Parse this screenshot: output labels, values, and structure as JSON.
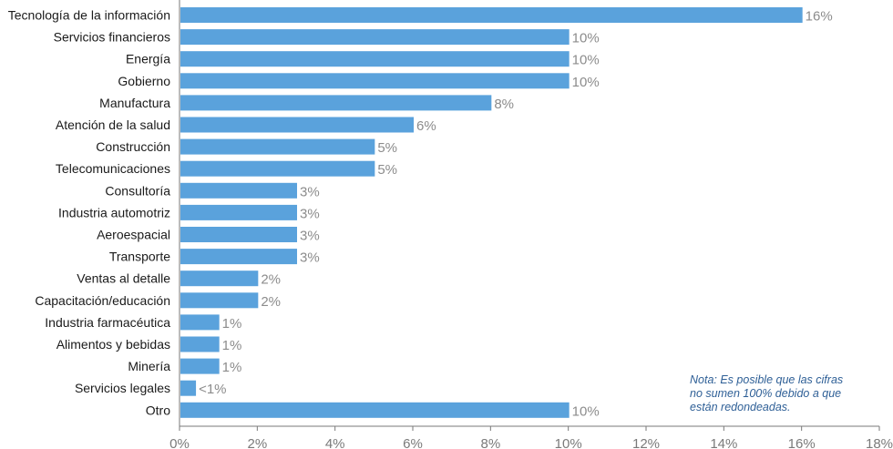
{
  "chart_data": {
    "type": "bar",
    "orientation": "horizontal",
    "categories": [
      "Tecnología de la información",
      "Servicios financieros",
      "Energía",
      "Gobierno",
      "Manufactura",
      "Atención de la salud",
      "Construcción",
      "Telecomunicaciones",
      "Consultoría",
      "Industria automotriz",
      "Aeroespacial",
      "Transporte",
      "Ventas al detalle",
      "Capacitación/educación",
      "Industria farmacéutica",
      "Alimentos y bebidas",
      "Minería",
      "Servicios legales",
      "Otro"
    ],
    "values": [
      16,
      10,
      10,
      10,
      8,
      6,
      5,
      5,
      3,
      3,
      3,
      3,
      2,
      2,
      1,
      1,
      1,
      0.4,
      10
    ],
    "value_labels": [
      "16%",
      "10%",
      "10%",
      "10%",
      "8%",
      "6%",
      "5%",
      "5%",
      "3%",
      "3%",
      "3%",
      "3%",
      "2%",
      "2%",
      "1%",
      "1%",
      "1%",
      "<1%",
      "10%"
    ],
    "xlim": [
      0,
      18
    ],
    "xticks": [
      0,
      2,
      4,
      6,
      8,
      10,
      12,
      14,
      16,
      18
    ],
    "xtick_labels": [
      "0%",
      "2%",
      "4%",
      "6%",
      "8%",
      "10%",
      "12%",
      "14%",
      "16%",
      "18%"
    ],
    "bar_color": "#5aa2dc",
    "axis_color": "#7a7a7a",
    "grid": false,
    "title": "",
    "xlabel": "",
    "ylabel": ""
  },
  "note": {
    "lines": [
      "Nota: Es posible que las cifras",
      "no sumen 100% debido a que",
      "están redondeadas."
    ]
  }
}
